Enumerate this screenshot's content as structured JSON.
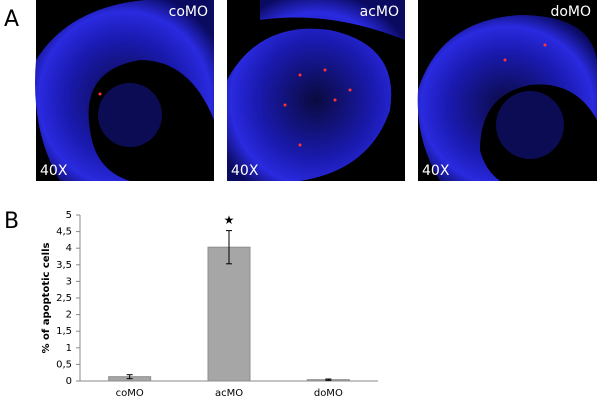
{
  "panel_labels": [
    "A",
    "B"
  ],
  "images": [
    {
      "label": "coMO",
      "magnification": "40X"
    },
    {
      "label": "acMO",
      "magnification": "40X"
    },
    {
      "label": "doMO",
      "magnification": "40X"
    }
  ],
  "chart_data": {
    "type": "bar",
    "ylabel": "% of apoptotic cells",
    "categories": [
      "coMO",
      "acMO",
      "doMO"
    ],
    "values": [
      0.13,
      4.03,
      0.04
    ],
    "errors": [
      0.06,
      0.5,
      0.02
    ],
    "color": "#a6a6a6",
    "annotations": [
      {
        "category": 1,
        "text": "★"
      }
    ],
    "ylim": [
      0,
      5
    ],
    "yticks": [
      0,
      {
        "value": 0.5,
        "label": "0,5"
      },
      1,
      {
        "value": 1.5,
        "label": "1,5"
      },
      2,
      {
        "value": 2.5,
        "label": "2,5"
      },
      3,
      {
        "value": 3.5,
        "label": "3,5"
      },
      4,
      {
        "value": 4.5,
        "label": "4,5"
      },
      5
    ]
  }
}
